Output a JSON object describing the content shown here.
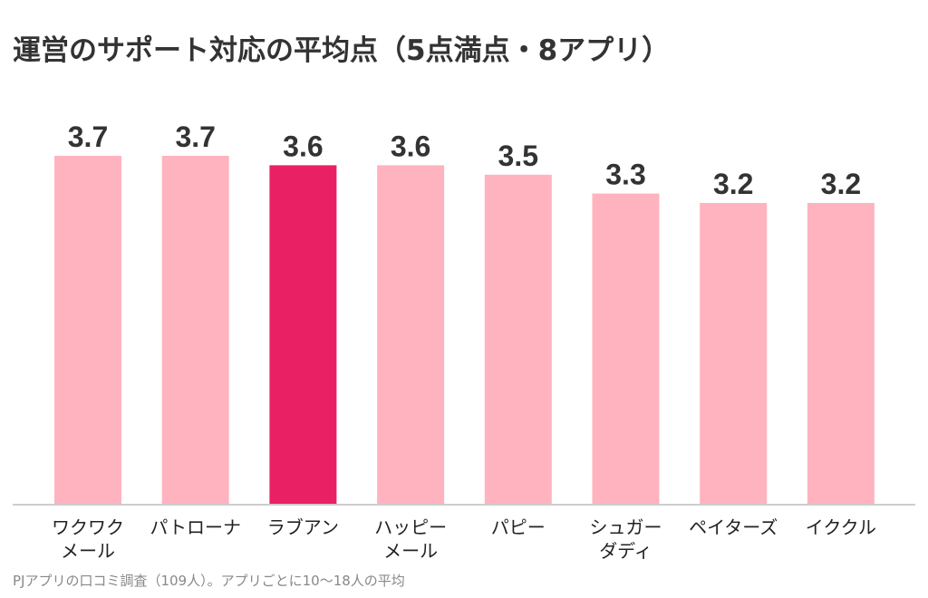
{
  "chart_data": {
    "type": "bar",
    "title": "運営のサポート対応の平均点（5点満点・8アプリ）",
    "categories": [
      [
        "ワクワク",
        "メール"
      ],
      [
        "パトローナ"
      ],
      [
        "ラブアン"
      ],
      [
        "ハッピー",
        "メール"
      ],
      [
        "パピー"
      ],
      [
        "シュガー",
        "ダディ"
      ],
      [
        "ペイターズ"
      ],
      [
        "イククル"
      ]
    ],
    "values": [
      3.7,
      3.7,
      3.6,
      3.6,
      3.5,
      3.3,
      3.2,
      3.2
    ],
    "value_labels": [
      "3.7",
      "3.7",
      "3.6",
      "3.6",
      "3.5",
      "3.3",
      "3.2",
      "3.2"
    ],
    "highlight_index": 2,
    "colors": {
      "bar": "#ffb3bf",
      "highlight": "#ea2064",
      "axis": "#cccccc",
      "text": "#333333"
    },
    "ylim": [
      0,
      3.7
    ],
    "grid": false,
    "legend": "none",
    "xlabel": "",
    "ylabel": ""
  },
  "footnote": "PJアプリの口コミ調査（109人）。アプリごとに10〜18人の平均"
}
